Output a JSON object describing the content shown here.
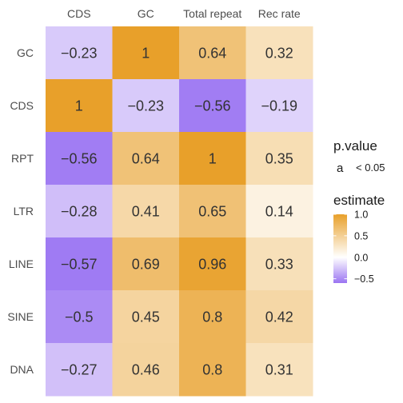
{
  "chart_data": {
    "type": "heatmap",
    "columns": [
      "CDS",
      "GC",
      "Total repeat",
      "Rec rate"
    ],
    "rows": [
      "GC",
      "CDS",
      "RPT",
      "LTR",
      "LINE",
      "SINE",
      "DNA"
    ],
    "values": [
      [
        -0.23,
        1,
        0.64,
        0.32
      ],
      [
        1,
        -0.23,
        -0.56,
        -0.19
      ],
      [
        -0.56,
        0.64,
        1,
        0.35
      ],
      [
        -0.28,
        0.41,
        0.65,
        0.14
      ],
      [
        -0.57,
        0.69,
        0.96,
        0.33
      ],
      [
        -0.5,
        0.45,
        0.8,
        0.42
      ],
      [
        -0.27,
        0.46,
        0.8,
        0.31
      ]
    ],
    "labels": [
      [
        "−0.23",
        "1",
        "0.64",
        "0.32"
      ],
      [
        "1",
        "−0.23",
        "−0.56",
        "−0.19"
      ],
      [
        "−0.56",
        "0.64",
        "1",
        "0.35"
      ],
      [
        "−0.28",
        "0.41",
        "0.65",
        "0.14"
      ],
      [
        "−0.57",
        "0.69",
        "0.96",
        "0.33"
      ],
      [
        "−0.5",
        "0.45",
        "0.8",
        "0.42"
      ],
      [
        "−0.27",
        "0.46",
        "0.8",
        "0.31"
      ]
    ],
    "color_scale": {
      "low_color": "#9a74f2",
      "mid_color": "#ffffff",
      "high_color": "#e8a02a",
      "low": -0.6,
      "mid": 0,
      "high": 1
    },
    "legend": {
      "shape_title": "p.value",
      "shape_key": "a",
      "shape_label": "< 0.05",
      "fill_title": "estimate",
      "ticks": [
        1.0,
        0.5,
        0.0,
        -0.5
      ],
      "tick_labels": [
        "1.0",
        "0.5",
        "0.0",
        "−0.5"
      ],
      "placement": "right"
    }
  }
}
